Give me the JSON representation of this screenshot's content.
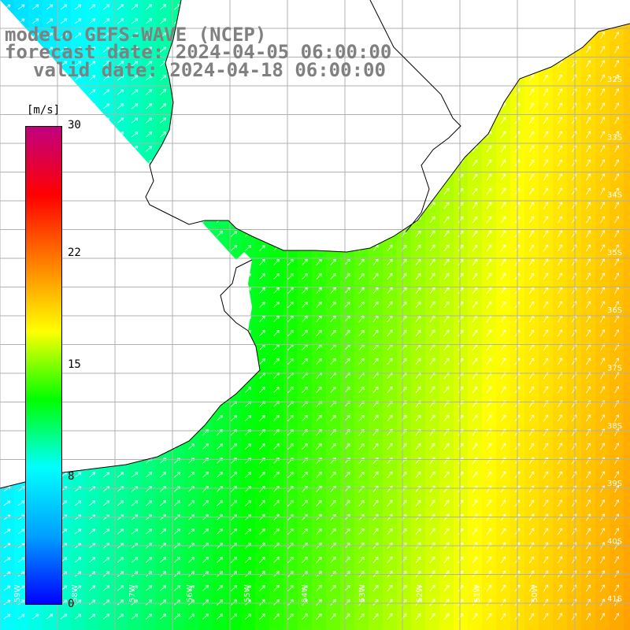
{
  "title": {
    "line1": "modelo GEFS-WAVE (NCEP)",
    "line2": "forecast date: 2024-04-05 06:00:00",
    "line3": "valid date: 2024-04-18 06:00:00"
  },
  "colorbar": {
    "units": "[m/s]",
    "min": 0,
    "max": 30,
    "tick_labels": [
      "30",
      "22",
      "15",
      "8",
      "0"
    ],
    "tick_values": [
      30,
      22,
      15,
      8,
      0
    ],
    "colors": [
      "#0000ff",
      "#00a0ff",
      "#00ffff",
      "#00ff00",
      "#ffff00",
      "#ff8000",
      "#ff0000",
      "#c00080"
    ]
  },
  "map": {
    "latitude_labels": [
      "32S",
      "33S",
      "34S",
      "35S",
      "36S",
      "37S",
      "38S",
      "39S",
      "40S",
      "41S"
    ],
    "longitude_labels": [
      "59W",
      "58W",
      "57W",
      "56W",
      "55W",
      "54W",
      "53W",
      "52W",
      "51W",
      "50W"
    ],
    "land_color": "#ffffff",
    "coast_color": "#000000",
    "grid_color": "#b0b0b0",
    "arrow_color": "#ffffff"
  }
}
